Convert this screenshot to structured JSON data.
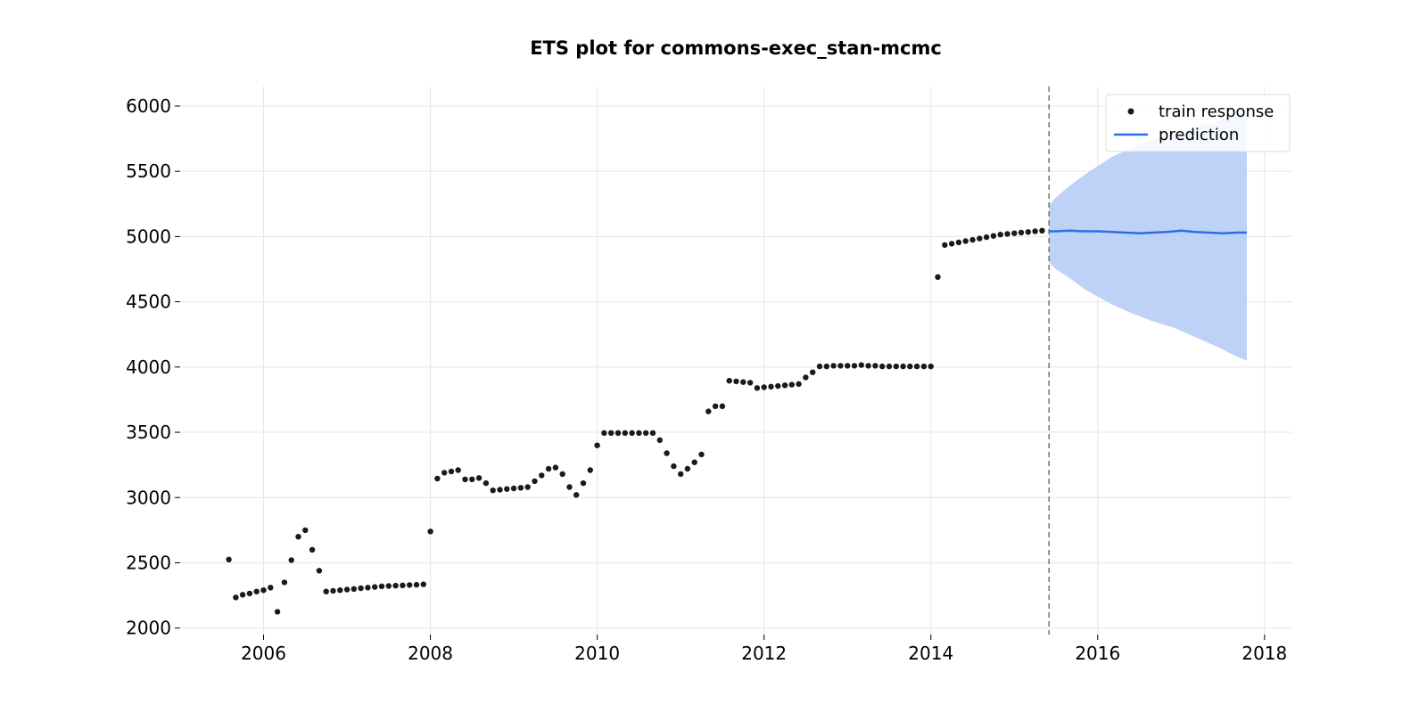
{
  "chart_data": {
    "type": "line",
    "title": "ETS plot for commons-exec_stan-mcmc",
    "xlabel": "",
    "ylabel": "",
    "xlim": [
      "2005-01-01",
      "2018-05-01"
    ],
    "ylim": [
      1950,
      6150
    ],
    "x_ticks": [
      "2006",
      "2008",
      "2010",
      "2012",
      "2014",
      "2016",
      "2018"
    ],
    "y_ticks": [
      "2000",
      "2500",
      "3000",
      "3500",
      "4000",
      "4500",
      "5000",
      "5500",
      "6000"
    ],
    "grid": true,
    "legend_position": "top-right",
    "forecast_start": "2015-06-01",
    "colors": {
      "train_points": "#1a1a1a",
      "prediction_line": "#2a6ee8",
      "interval_fill": "#bed2f7",
      "forecast_divider": "#707070"
    },
    "series": [
      {
        "name": "train response",
        "kind": "scatter",
        "points": [
          [
            "2005-08-01",
            2525
          ],
          [
            "2005-09-01",
            2235
          ],
          [
            "2005-10-01",
            2255
          ],
          [
            "2005-11-01",
            2265
          ],
          [
            "2005-12-01",
            2280
          ],
          [
            "2006-01-01",
            2290
          ],
          [
            "2006-02-01",
            2310
          ],
          [
            "2006-03-01",
            2125
          ],
          [
            "2006-04-01",
            2350
          ],
          [
            "2006-05-01",
            2520
          ],
          [
            "2006-06-01",
            2700
          ],
          [
            "2006-07-01",
            2750
          ],
          [
            "2006-08-01",
            2600
          ],
          [
            "2006-09-01",
            2440
          ],
          [
            "2006-10-01",
            2280
          ],
          [
            "2006-11-01",
            2285
          ],
          [
            "2006-12-01",
            2290
          ],
          [
            "2007-01-01",
            2295
          ],
          [
            "2007-02-01",
            2300
          ],
          [
            "2007-03-01",
            2305
          ],
          [
            "2007-04-01",
            2310
          ],
          [
            "2007-05-01",
            2315
          ],
          [
            "2007-06-01",
            2320
          ],
          [
            "2007-07-01",
            2322
          ],
          [
            "2007-08-01",
            2325
          ],
          [
            "2007-09-01",
            2327
          ],
          [
            "2007-10-01",
            2330
          ],
          [
            "2007-11-01",
            2332
          ],
          [
            "2007-12-01",
            2335
          ],
          [
            "2008-01-01",
            2740
          ],
          [
            "2008-02-01",
            3145
          ],
          [
            "2008-03-01",
            3190
          ],
          [
            "2008-04-01",
            3200
          ],
          [
            "2008-05-01",
            3210
          ],
          [
            "2008-06-01",
            3140
          ],
          [
            "2008-07-01",
            3140
          ],
          [
            "2008-08-01",
            3150
          ],
          [
            "2008-09-01",
            3110
          ],
          [
            "2008-10-01",
            3055
          ],
          [
            "2008-11-01",
            3060
          ],
          [
            "2008-12-01",
            3065
          ],
          [
            "2009-01-01",
            3070
          ],
          [
            "2009-02-01",
            3075
          ],
          [
            "2009-03-01",
            3080
          ],
          [
            "2009-04-01",
            3125
          ],
          [
            "2009-05-01",
            3170
          ],
          [
            "2009-06-01",
            3220
          ],
          [
            "2009-07-01",
            3230
          ],
          [
            "2009-08-01",
            3180
          ],
          [
            "2009-09-01",
            3080
          ],
          [
            "2009-10-01",
            3020
          ],
          [
            "2009-11-01",
            3110
          ],
          [
            "2009-12-01",
            3210
          ],
          [
            "2010-01-01",
            3400
          ],
          [
            "2010-02-01",
            3495
          ],
          [
            "2010-03-01",
            3495
          ],
          [
            "2010-04-01",
            3495
          ],
          [
            "2010-05-01",
            3495
          ],
          [
            "2010-06-01",
            3495
          ],
          [
            "2010-07-01",
            3495
          ],
          [
            "2010-08-01",
            3495
          ],
          [
            "2010-09-01",
            3495
          ],
          [
            "2010-10-01",
            3440
          ],
          [
            "2010-11-01",
            3340
          ],
          [
            "2010-12-01",
            3240
          ],
          [
            "2011-01-01",
            3180
          ],
          [
            "2011-02-01",
            3220
          ],
          [
            "2011-03-01",
            3270
          ],
          [
            "2011-04-01",
            3330
          ],
          [
            "2011-05-01",
            3660
          ],
          [
            "2011-06-01",
            3700
          ],
          [
            "2011-07-01",
            3700
          ],
          [
            "2011-08-01",
            3895
          ],
          [
            "2011-09-01",
            3890
          ],
          [
            "2011-10-01",
            3885
          ],
          [
            "2011-11-01",
            3880
          ],
          [
            "2011-12-01",
            3840
          ],
          [
            "2012-01-01",
            3845
          ],
          [
            "2012-02-01",
            3850
          ],
          [
            "2012-03-01",
            3855
          ],
          [
            "2012-04-01",
            3860
          ],
          [
            "2012-05-01",
            3865
          ],
          [
            "2012-06-01",
            3870
          ],
          [
            "2012-07-01",
            3920
          ],
          [
            "2012-08-01",
            3960
          ],
          [
            "2012-09-01",
            4005
          ],
          [
            "2012-10-01",
            4005
          ],
          [
            "2012-11-01",
            4010
          ],
          [
            "2012-12-01",
            4010
          ],
          [
            "2013-01-01",
            4010
          ],
          [
            "2013-02-01",
            4010
          ],
          [
            "2013-03-01",
            4015
          ],
          [
            "2013-04-01",
            4010
          ],
          [
            "2013-05-01",
            4010
          ],
          [
            "2013-06-01",
            4005
          ],
          [
            "2013-07-01",
            4005
          ],
          [
            "2013-08-01",
            4005
          ],
          [
            "2013-09-01",
            4005
          ],
          [
            "2013-10-01",
            4005
          ],
          [
            "2013-11-01",
            4005
          ],
          [
            "2013-12-01",
            4005
          ],
          [
            "2014-01-01",
            4005
          ],
          [
            "2014-02-01",
            4690
          ],
          [
            "2014-03-01",
            4935
          ],
          [
            "2014-04-01",
            4945
          ],
          [
            "2014-05-01",
            4955
          ],
          [
            "2014-06-01",
            4965
          ],
          [
            "2014-07-01",
            4975
          ],
          [
            "2014-08-01",
            4985
          ],
          [
            "2014-09-01",
            4995
          ],
          [
            "2014-10-01",
            5005
          ],
          [
            "2014-11-01",
            5015
          ],
          [
            "2014-12-01",
            5020
          ],
          [
            "2015-01-01",
            5025
          ],
          [
            "2015-02-01",
            5030
          ],
          [
            "2015-03-01",
            5035
          ],
          [
            "2015-04-01",
            5040
          ],
          [
            "2015-05-01",
            5045
          ]
        ]
      },
      {
        "name": "prediction",
        "kind": "line",
        "points": [
          [
            "2015-06-01",
            5040
          ],
          [
            "2015-07-01",
            5040
          ],
          [
            "2015-09-01",
            5045
          ],
          [
            "2015-11-01",
            5040
          ],
          [
            "2016-01-01",
            5040
          ],
          [
            "2016-03-01",
            5035
          ],
          [
            "2016-05-01",
            5030
          ],
          [
            "2016-07-01",
            5025
          ],
          [
            "2016-09-01",
            5030
          ],
          [
            "2016-11-01",
            5035
          ],
          [
            "2017-01-01",
            5045
          ],
          [
            "2017-03-01",
            5035
          ],
          [
            "2017-05-01",
            5030
          ],
          [
            "2017-07-01",
            5025
          ],
          [
            "2017-09-01",
            5030
          ],
          [
            "2017-10-15",
            5030
          ]
        ],
        "interval": [
          [
            "2015-06-01",
            4800,
            5240
          ],
          [
            "2015-07-01",
            4750,
            5300
          ],
          [
            "2015-09-01",
            4680,
            5390
          ],
          [
            "2015-11-01",
            4600,
            5470
          ],
          [
            "2016-01-01",
            4540,
            5540
          ],
          [
            "2016-03-01",
            4480,
            5610
          ],
          [
            "2016-06-01",
            4410,
            5680
          ],
          [
            "2016-09-01",
            4350,
            5740
          ],
          [
            "2016-12-01",
            4300,
            5790
          ],
          [
            "2017-03-01",
            4230,
            5840
          ],
          [
            "2017-06-01",
            4160,
            5880
          ],
          [
            "2017-09-01",
            4080,
            5920
          ],
          [
            "2017-10-15",
            4050,
            5940
          ]
        ]
      }
    ]
  }
}
